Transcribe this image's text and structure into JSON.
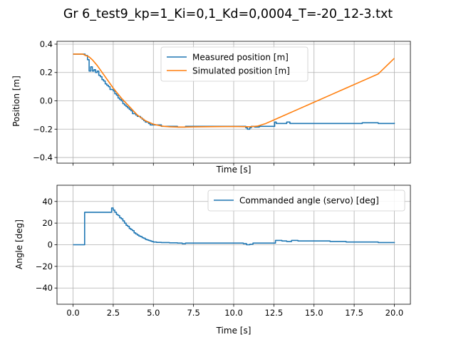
{
  "figure": {
    "title": "Gr 6_test9_kp=1_Ki=0,1_Kd=0,0004_T=-20_12-3.txt"
  },
  "colors": {
    "measured": "#1f77b4",
    "simulated": "#ff7f0e",
    "grid": "#b0b0b0",
    "axes": "#000000"
  },
  "chart_data": [
    {
      "type": "line",
      "xlabel": "Time [s]",
      "ylabel": "Position [m]",
      "xlim": [
        -1.0,
        21.0
      ],
      "ylim": [
        -0.44,
        0.42
      ],
      "xticks": [
        0,
        2.5,
        5,
        7.5,
        10,
        12.5,
        15,
        17.5,
        20
      ],
      "xtick_labels": [],
      "yticks": [
        -0.4,
        -0.2,
        0.0,
        0.2,
        0.4
      ],
      "ytick_labels": [
        "−0.4",
        "−0.2",
        "0.0",
        "0.2",
        "0.4"
      ],
      "grid": true,
      "legend_position": "top-center",
      "series": [
        {
          "name": "Measured position [m]",
          "color_key": "measured",
          "step": true,
          "x": [
            0,
            0.4,
            0.75,
            0.9,
            1.0,
            1.1,
            1.2,
            1.3,
            1.4,
            1.5,
            1.6,
            1.7,
            1.8,
            1.9,
            2.0,
            2.1,
            2.2,
            2.3,
            2.4,
            2.5,
            2.6,
            2.7,
            2.8,
            2.9,
            3.0,
            3.1,
            3.2,
            3.3,
            3.4,
            3.5,
            3.6,
            3.7,
            3.8,
            3.9,
            4.0,
            4.1,
            4.2,
            4.3,
            4.4,
            4.5,
            4.6,
            4.7,
            4.8,
            4.9,
            5.0,
            5.5,
            6.0,
            6.5,
            7.0,
            7.5,
            8.0,
            8.5,
            9.0,
            9.5,
            10.0,
            10.5,
            10.75,
            10.85,
            11.0,
            11.1,
            11.3,
            11.6,
            12.0,
            12.3,
            12.55,
            12.65,
            13.0,
            13.3,
            13.5,
            13.8,
            14.5,
            15.0,
            16.0,
            17.0,
            18.0,
            19.0,
            20.0
          ],
          "y": [
            0.33,
            0.33,
            0.32,
            0.29,
            0.21,
            0.24,
            0.21,
            0.22,
            0.2,
            0.21,
            0.18,
            0.17,
            0.15,
            0.14,
            0.12,
            0.11,
            0.1,
            0.08,
            0.08,
            0.07,
            0.05,
            0.04,
            0.02,
            0.01,
            0.0,
            -0.02,
            -0.03,
            -0.04,
            -0.05,
            -0.06,
            -0.07,
            -0.09,
            -0.09,
            -0.1,
            -0.11,
            -0.11,
            -0.12,
            -0.13,
            -0.14,
            -0.15,
            -0.15,
            -0.16,
            -0.17,
            -0.17,
            -0.17,
            -0.18,
            -0.18,
            -0.185,
            -0.18,
            -0.18,
            -0.18,
            -0.18,
            -0.18,
            -0.18,
            -0.18,
            -0.18,
            -0.19,
            -0.2,
            -0.19,
            -0.18,
            -0.185,
            -0.18,
            -0.18,
            -0.18,
            -0.15,
            -0.16,
            -0.16,
            -0.15,
            -0.16,
            -0.16,
            -0.16,
            -0.16,
            -0.16,
            -0.16,
            -0.155,
            -0.16,
            -0.155
          ]
        },
        {
          "name": "Simulated position [m]",
          "color_key": "simulated",
          "step": false,
          "x": [
            0,
            0.3,
            0.6,
            0.8,
            1.0,
            1.2,
            1.5,
            2.0,
            2.5,
            3.0,
            3.5,
            4.0,
            4.5,
            5.0,
            5.5,
            6.0,
            6.5,
            7.0,
            7.5,
            8.0,
            9.0,
            10.0,
            10.5,
            11.0,
            11.5,
            12.0,
            12.5,
            13.0,
            14.0,
            15.0,
            16.0,
            17.0,
            18.0,
            19.0,
            20.0
          ],
          "y": [
            0.33,
            0.33,
            0.33,
            0.32,
            0.31,
            0.29,
            0.25,
            0.17,
            0.09,
            0.02,
            -0.04,
            -0.1,
            -0.14,
            -0.165,
            -0.178,
            -0.183,
            -0.185,
            -0.185,
            -0.184,
            -0.183,
            -0.182,
            -0.181,
            -0.182,
            -0.183,
            -0.178,
            -0.16,
            -0.135,
            -0.11,
            -0.06,
            -0.01,
            0.04,
            0.09,
            0.14,
            0.19,
            0.3
          ]
        }
      ]
    },
    {
      "type": "line",
      "xlabel": "Time [s]",
      "ylabel": "Angle [deg]",
      "xlim": [
        -1.0,
        21.0
      ],
      "ylim": [
        -55,
        55
      ],
      "xticks": [
        0,
        2.5,
        5,
        7.5,
        10,
        12.5,
        15,
        17.5,
        20
      ],
      "xtick_labels": [
        "0.0",
        "2.5",
        "5.0",
        "7.5",
        "10.0",
        "12.5",
        "15.0",
        "17.5",
        "20.0"
      ],
      "yticks": [
        -40,
        -20,
        0,
        20,
        40
      ],
      "ytick_labels": [
        "−40",
        "−20",
        "0",
        "20",
        "40"
      ],
      "grid": true,
      "legend_position": "top-right",
      "series": [
        {
          "name": "Commanded angle (servo) [deg]",
          "color_key": "measured",
          "step": true,
          "x": [
            0,
            0.65,
            0.72,
            2.25,
            2.4,
            2.5,
            2.6,
            2.7,
            2.8,
            2.9,
            3.0,
            3.1,
            3.2,
            3.3,
            3.4,
            3.5,
            3.6,
            3.7,
            3.8,
            3.9,
            4.0,
            4.1,
            4.2,
            4.3,
            4.4,
            4.5,
            4.6,
            4.7,
            4.8,
            4.9,
            5.0,
            5.2,
            5.5,
            6.0,
            6.5,
            6.8,
            7.0,
            8.0,
            9.0,
            10.0,
            10.6,
            10.8,
            11.0,
            11.2,
            12.0,
            12.5,
            12.6,
            13.0,
            13.3,
            13.6,
            14.0,
            15.0,
            16.0,
            17.0,
            18.0,
            19.0,
            20.0
          ],
          "y": [
            0,
            0,
            30,
            30,
            34,
            32,
            30,
            28,
            27,
            25,
            24,
            22,
            20,
            18,
            17,
            15,
            14,
            13,
            11,
            10,
            9,
            8,
            7.5,
            6.5,
            6,
            5,
            4.5,
            4,
            3.5,
            3,
            2.5,
            2.2,
            2.0,
            1.8,
            1.5,
            1.0,
            1.5,
            1.5,
            1.5,
            1.5,
            1.0,
            0,
            0.5,
            1.5,
            1.5,
            1.5,
            4,
            3.5,
            3,
            4,
            3.5,
            3.5,
            3,
            2.5,
            2.5,
            2,
            2.5
          ]
        }
      ]
    }
  ]
}
